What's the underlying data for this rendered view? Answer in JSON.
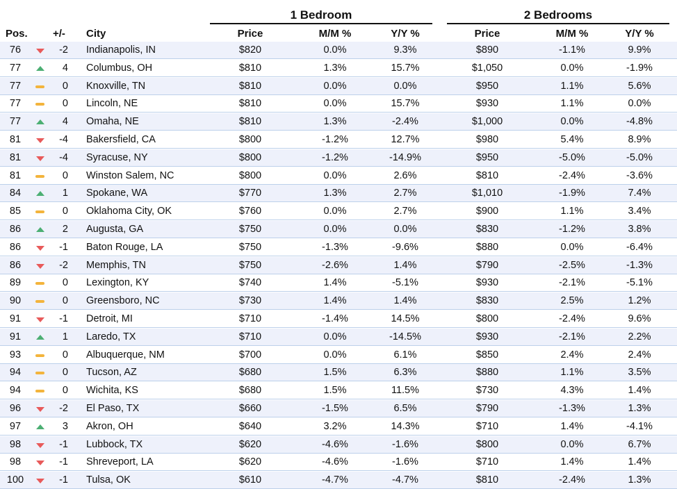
{
  "chart_data": {
    "type": "table",
    "groups": [
      "1 Bedroom",
      "2 Bedrooms"
    ],
    "columns": [
      "Pos.",
      "+/-",
      "City",
      "Price",
      "M/M %",
      "Y/Y %",
      "Price",
      "M/M %",
      "Y/Y %"
    ],
    "colors": {
      "up": "#4caf73",
      "down": "#e85a5a",
      "flat": "#f3b43c",
      "stripe": "#eef1fb",
      "rule": "#bcd0ea"
    },
    "rows": [
      {
        "pos": "76",
        "trend": "down",
        "change": "-2",
        "city": "Indianapolis, IN",
        "p1": "$820",
        "mm1": "0.0%",
        "yy1": "9.3%",
        "p2": "$890",
        "mm2": "-1.1%",
        "yy2": "9.9%"
      },
      {
        "pos": "77",
        "trend": "up",
        "change": "4",
        "city": "Columbus, OH",
        "p1": "$810",
        "mm1": "1.3%",
        "yy1": "15.7%",
        "p2": "$1,050",
        "mm2": "0.0%",
        "yy2": "-1.9%"
      },
      {
        "pos": "77",
        "trend": "flat",
        "change": "0",
        "city": "Knoxville, TN",
        "p1": "$810",
        "mm1": "0.0%",
        "yy1": "0.0%",
        "p2": "$950",
        "mm2": "1.1%",
        "yy2": "5.6%"
      },
      {
        "pos": "77",
        "trend": "flat",
        "change": "0",
        "city": "Lincoln, NE",
        "p1": "$810",
        "mm1": "0.0%",
        "yy1": "15.7%",
        "p2": "$930",
        "mm2": "1.1%",
        "yy2": "0.0%"
      },
      {
        "pos": "77",
        "trend": "up",
        "change": "4",
        "city": "Omaha, NE",
        "p1": "$810",
        "mm1": "1.3%",
        "yy1": "-2.4%",
        "p2": "$1,000",
        "mm2": "0.0%",
        "yy2": "-4.8%"
      },
      {
        "pos": "81",
        "trend": "down",
        "change": "-4",
        "city": "Bakersfield, CA",
        "p1": "$800",
        "mm1": "-1.2%",
        "yy1": "12.7%",
        "p2": "$980",
        "mm2": "5.4%",
        "yy2": "8.9%"
      },
      {
        "pos": "81",
        "trend": "down",
        "change": "-4",
        "city": "Syracuse, NY",
        "p1": "$800",
        "mm1": "-1.2%",
        "yy1": "-14.9%",
        "p2": "$950",
        "mm2": "-5.0%",
        "yy2": "-5.0%"
      },
      {
        "pos": "81",
        "trend": "flat",
        "change": "0",
        "city": "Winston Salem, NC",
        "p1": "$800",
        "mm1": "0.0%",
        "yy1": "2.6%",
        "p2": "$810",
        "mm2": "-2.4%",
        "yy2": "-3.6%"
      },
      {
        "pos": "84",
        "trend": "up",
        "change": "1",
        "city": "Spokane, WA",
        "p1": "$770",
        "mm1": "1.3%",
        "yy1": "2.7%",
        "p2": "$1,010",
        "mm2": "-1.9%",
        "yy2": "7.4%"
      },
      {
        "pos": "85",
        "trend": "flat",
        "change": "0",
        "city": "Oklahoma City, OK",
        "p1": "$760",
        "mm1": "0.0%",
        "yy1": "2.7%",
        "p2": "$900",
        "mm2": "1.1%",
        "yy2": "3.4%"
      },
      {
        "pos": "86",
        "trend": "up",
        "change": "2",
        "city": "Augusta, GA",
        "p1": "$750",
        "mm1": "0.0%",
        "yy1": "0.0%",
        "p2": "$830",
        "mm2": "-1.2%",
        "yy2": "3.8%"
      },
      {
        "pos": "86",
        "trend": "down",
        "change": "-1",
        "city": "Baton Rouge, LA",
        "p1": "$750",
        "mm1": "-1.3%",
        "yy1": "-9.6%",
        "p2": "$880",
        "mm2": "0.0%",
        "yy2": "-6.4%"
      },
      {
        "pos": "86",
        "trend": "down",
        "change": "-2",
        "city": "Memphis, TN",
        "p1": "$750",
        "mm1": "-2.6%",
        "yy1": "1.4%",
        "p2": "$790",
        "mm2": "-2.5%",
        "yy2": "-1.3%"
      },
      {
        "pos": "89",
        "trend": "flat",
        "change": "0",
        "city": "Lexington, KY",
        "p1": "$740",
        "mm1": "1.4%",
        "yy1": "-5.1%",
        "p2": "$930",
        "mm2": "-2.1%",
        "yy2": "-5.1%"
      },
      {
        "pos": "90",
        "trend": "flat",
        "change": "0",
        "city": "Greensboro, NC",
        "p1": "$730",
        "mm1": "1.4%",
        "yy1": "1.4%",
        "p2": "$830",
        "mm2": "2.5%",
        "yy2": "1.2%"
      },
      {
        "pos": "91",
        "trend": "down",
        "change": "-1",
        "city": "Detroit, MI",
        "p1": "$710",
        "mm1": "-1.4%",
        "yy1": "14.5%",
        "p2": "$800",
        "mm2": "-2.4%",
        "yy2": "9.6%"
      },
      {
        "pos": "91",
        "trend": "up",
        "change": "1",
        "city": "Laredo, TX",
        "p1": "$710",
        "mm1": "0.0%",
        "yy1": "-14.5%",
        "p2": "$930",
        "mm2": "-2.1%",
        "yy2": "2.2%"
      },
      {
        "pos": "93",
        "trend": "flat",
        "change": "0",
        "city": "Albuquerque, NM",
        "p1": "$700",
        "mm1": "0.0%",
        "yy1": "6.1%",
        "p2": "$850",
        "mm2": "2.4%",
        "yy2": "2.4%"
      },
      {
        "pos": "94",
        "trend": "flat",
        "change": "0",
        "city": "Tucson, AZ",
        "p1": "$680",
        "mm1": "1.5%",
        "yy1": "6.3%",
        "p2": "$880",
        "mm2": "1.1%",
        "yy2": "3.5%"
      },
      {
        "pos": "94",
        "trend": "flat",
        "change": "0",
        "city": "Wichita, KS",
        "p1": "$680",
        "mm1": "1.5%",
        "yy1": "11.5%",
        "p2": "$730",
        "mm2": "4.3%",
        "yy2": "1.4%"
      },
      {
        "pos": "96",
        "trend": "down",
        "change": "-2",
        "city": "El Paso, TX",
        "p1": "$660",
        "mm1": "-1.5%",
        "yy1": "6.5%",
        "p2": "$790",
        "mm2": "-1.3%",
        "yy2": "1.3%"
      },
      {
        "pos": "97",
        "trend": "up",
        "change": "3",
        "city": "Akron, OH",
        "p1": "$640",
        "mm1": "3.2%",
        "yy1": "14.3%",
        "p2": "$710",
        "mm2": "1.4%",
        "yy2": "-4.1%"
      },
      {
        "pos": "98",
        "trend": "down",
        "change": "-1",
        "city": "Lubbock, TX",
        "p1": "$620",
        "mm1": "-4.6%",
        "yy1": "-1.6%",
        "p2": "$800",
        "mm2": "0.0%",
        "yy2": "6.7%"
      },
      {
        "pos": "98",
        "trend": "down",
        "change": "-1",
        "city": "Shreveport, LA",
        "p1": "$620",
        "mm1": "-4.6%",
        "yy1": "-1.6%",
        "p2": "$710",
        "mm2": "1.4%",
        "yy2": "1.4%"
      },
      {
        "pos": "100",
        "trend": "down",
        "change": "-1",
        "city": "Tulsa, OK",
        "p1": "$610",
        "mm1": "-4.7%",
        "yy1": "-4.7%",
        "p2": "$810",
        "mm2": "-2.4%",
        "yy2": "1.3%"
      }
    ]
  }
}
